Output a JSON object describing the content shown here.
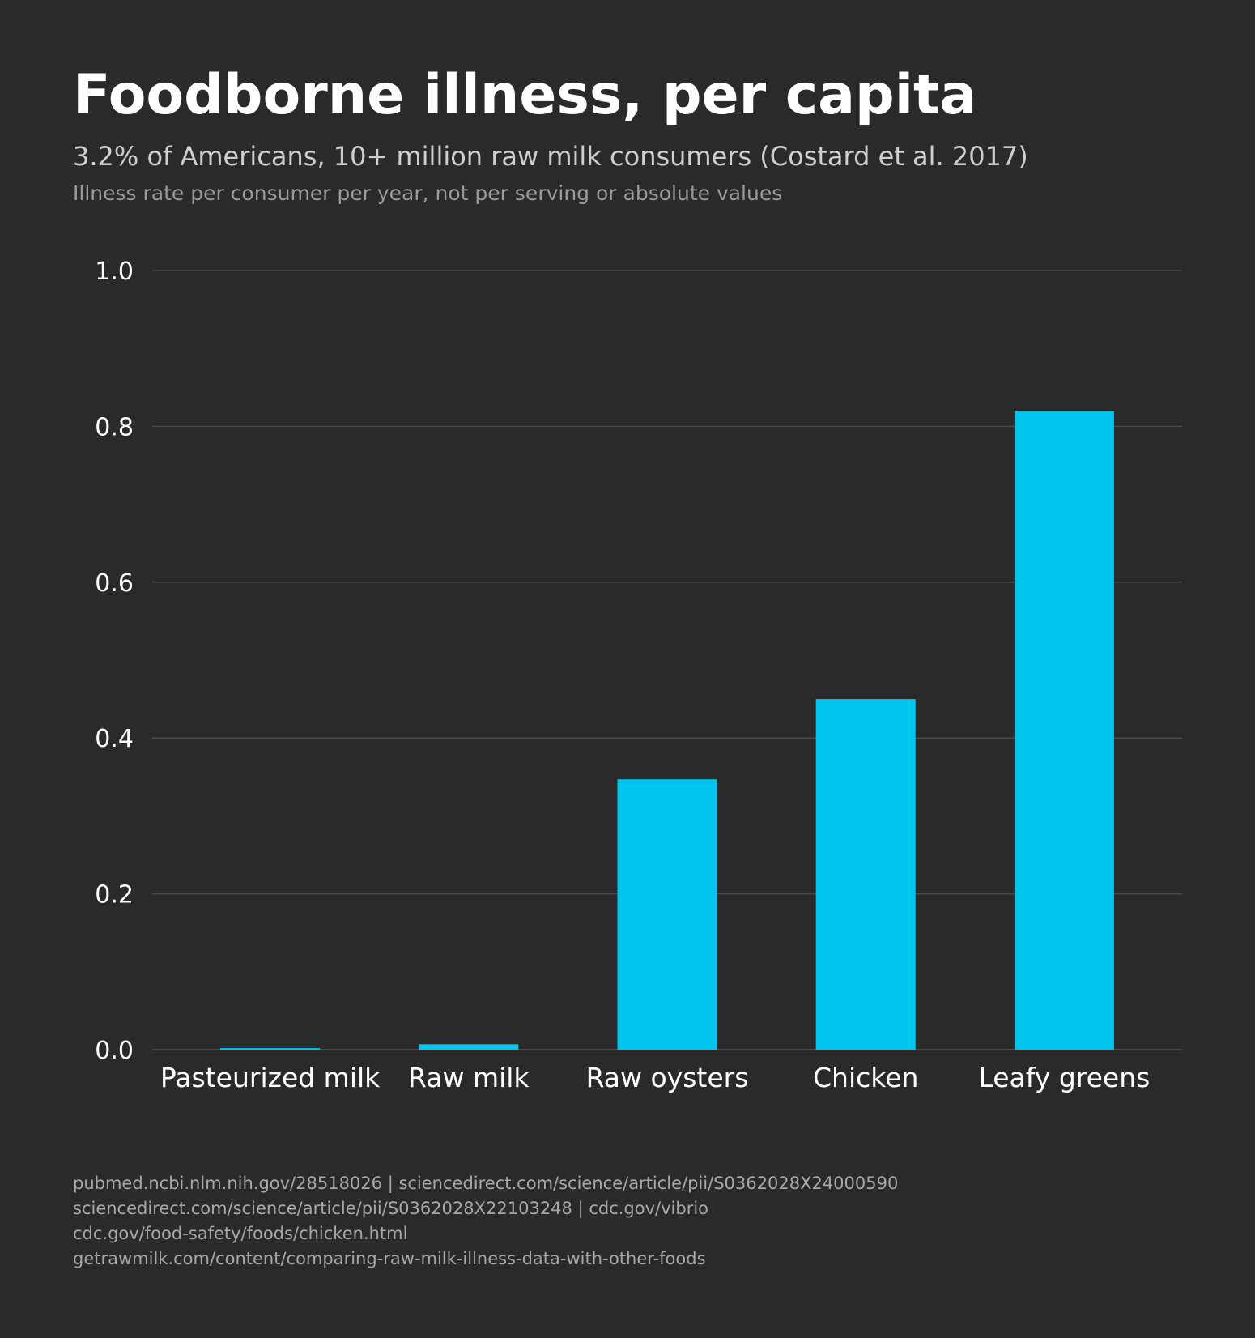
{
  "chart_data": {
    "type": "bar",
    "title": "Foodborne illness, per capita",
    "subtitle": "3.2% of Americans, 10+ million raw milk consumers (Costard et al. 2017)",
    "note": "Illness rate per consumer per year, not per serving or absolute values",
    "categories": [
      "Pasteurized milk",
      "Raw milk",
      "Raw oysters",
      "Chicken",
      "Leafy greens"
    ],
    "values": [
      0.002,
      0.007,
      0.347,
      0.45,
      0.82
    ],
    "xlabel": "",
    "ylabel": "",
    "ylim": [
      0,
      1.0
    ],
    "yticks": [
      "0.0",
      "0.2",
      "0.4",
      "0.6",
      "0.8",
      "1.0"
    ],
    "grid": true,
    "bar_color": "#00c5ee",
    "background": "#2a2a2a"
  },
  "footer": {
    "lines": [
      "pubmed.ncbi.nlm.nih.gov/28518026  |  sciencedirect.com/science/article/pii/S0362028X24000590",
      "sciencedirect.com/science/article/pii/S0362028X22103248  |  cdc.gov/vibrio",
      "cdc.gov/food-safety/foods/chicken.html",
      "getrawmilk.com/content/comparing-raw-milk-illness-data-with-other-foods"
    ]
  }
}
